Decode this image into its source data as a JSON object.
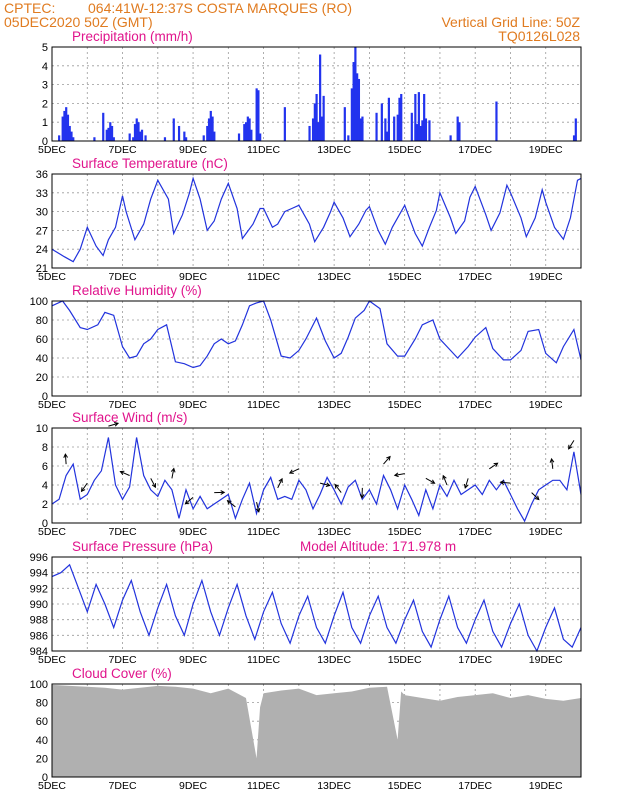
{
  "header": {
    "line1_left": "CPTEC:",
    "line1_center": "064:41W-12:37S   COSTA MARQUES (RO)",
    "line2_left": "05DEC2020 50Z (GMT)",
    "line2_right": "Vertical Grid Line: 50Z",
    "line3_right": "TQ0126L028"
  },
  "colors": {
    "header": "#e07b20",
    "panel_title": "#e0148c",
    "line": "#2233dd",
    "bar": "#2233ee",
    "cloud": "#b0b0b0",
    "arrow": "#000000"
  },
  "x_ticks": [
    "5DEC",
    "7DEC",
    "9DEC",
    "11DEC",
    "13DEC",
    "15DEC",
    "17DEC",
    "19DEC"
  ],
  "chart_data": [
    {
      "type": "bar",
      "title": "Precipitation (mm/h)",
      "ylim": [
        0,
        5
      ],
      "yticks": [
        "0",
        "1",
        "2",
        "3",
        "4",
        "5"
      ],
      "x": [
        "5.2",
        "5.3",
        "5.35",
        "5.4",
        "5.45",
        "5.5",
        "5.55",
        "5.6",
        "6.2",
        "6.45",
        "6.55",
        "6.6",
        "6.65",
        "6.7",
        "6.75",
        "7.2",
        "7.3",
        "7.35",
        "7.4",
        "7.45",
        "7.5",
        "7.55",
        "7.65",
        "8.2",
        "8.45",
        "8.6",
        "8.75",
        "8.8",
        "9.3",
        "9.4",
        "9.45",
        "9.5",
        "9.55",
        "9.6",
        "10.3",
        "10.45",
        "10.5",
        "10.55",
        "10.6",
        "10.65",
        "10.8",
        "10.85",
        "10.9",
        "11.6",
        "12.3",
        "12.4",
        "12.45",
        "12.5",
        "12.55",
        "12.6",
        "12.65",
        "12.7",
        "13.3",
        "13.4",
        "13.5",
        "13.55",
        "13.6",
        "13.65",
        "13.7",
        "13.75",
        "13.8",
        "14.2",
        "14.35",
        "14.45",
        "14.5",
        "14.55",
        "14.7",
        "14.8",
        "14.85",
        "14.9",
        "15.2",
        "15.3",
        "15.35",
        "15.4",
        "15.45",
        "15.5",
        "15.55",
        "15.6",
        "15.7",
        "16.3",
        "16.5",
        "16.55",
        "17.6",
        "19.8",
        "19.85"
      ],
      "values": [
        0.3,
        1.3,
        1.6,
        1.8,
        1.4,
        0.8,
        0.5,
        0.2,
        0.2,
        1.5,
        0.6,
        0.7,
        1.0,
        0.8,
        0.2,
        0.4,
        0.2,
        0.9,
        1.2,
        1.0,
        0.5,
        0.6,
        0.3,
        0.2,
        1.2,
        0.8,
        0.5,
        0.2,
        0.3,
        0.8,
        1.2,
        1.6,
        1.3,
        0.5,
        0.4,
        0.9,
        1.0,
        1.3,
        1.2,
        0.6,
        2.8,
        2.7,
        0.4,
        1.8,
        0.8,
        1.2,
        2.0,
        2.5,
        1.0,
        4.6,
        1.3,
        2.4,
        1.8,
        0.3,
        2.8,
        4.2,
        5.0,
        3.6,
        3.3,
        1.2,
        1.3,
        1.5,
        2.0,
        1.2,
        0.5,
        2.3,
        1.3,
        1.4,
        2.3,
        2.5,
        1.5,
        2.5,
        0.9,
        2.6,
        0.8,
        1.1,
        2.5,
        1.2,
        1.1,
        0.3,
        1.3,
        1.0,
        2.1,
        0.3,
        1.2
      ]
    },
    {
      "type": "line",
      "title": "Surface Temperature (nC)",
      "ylim": [
        21,
        36
      ],
      "yticks": [
        "21",
        "24",
        "27",
        "30",
        "33",
        "36"
      ],
      "x": [
        "5.0",
        "5.35",
        "5.6",
        "5.8",
        "6.0",
        "6.25",
        "6.45",
        "6.6",
        "6.8",
        "7.0",
        "7.1",
        "7.35",
        "7.6",
        "7.8",
        "8.0",
        "8.3",
        "8.45",
        "8.7",
        "8.9",
        "9.0",
        "9.2",
        "9.4",
        "9.6",
        "9.8",
        "10.0",
        "10.25",
        "10.4",
        "10.7",
        "10.9",
        "11.0",
        "11.25",
        "11.4",
        "11.6",
        "11.8",
        "12.0",
        "12.3",
        "12.45",
        "12.7",
        "12.9",
        "13.0",
        "13.25",
        "13.45",
        "13.7",
        "13.9",
        "14.0",
        "14.25",
        "14.45",
        "14.65",
        "14.85",
        "15.0",
        "15.3",
        "15.5",
        "15.7",
        "15.9",
        "16.0",
        "16.3",
        "16.45",
        "16.7",
        "16.85",
        "17.0",
        "17.3",
        "17.45",
        "17.7",
        "17.9",
        "18.0",
        "18.3",
        "18.45",
        "18.7",
        "18.9",
        "19.0",
        "19.25",
        "19.5",
        "19.7",
        "19.9",
        "20.0"
      ],
      "values": [
        24,
        22.8,
        22,
        24,
        27.5,
        24.5,
        23,
        25.5,
        27.5,
        32.5,
        30,
        25.5,
        28,
        32,
        35,
        32,
        26.5,
        29.5,
        33,
        35.3,
        32,
        27,
        28.5,
        32,
        34.5,
        30.5,
        25.7,
        28,
        30.5,
        30.5,
        27.5,
        28,
        30,
        30.5,
        31,
        28,
        25.2,
        27.5,
        30,
        31.5,
        29,
        26,
        28,
        30.2,
        30.8,
        27,
        24.8,
        27.5,
        29.5,
        31,
        26.5,
        24.5,
        27.5,
        30.2,
        33,
        29,
        26.5,
        28.5,
        32.3,
        34,
        29.5,
        27,
        29.8,
        34.2,
        33,
        29,
        26,
        29,
        33.5,
        31.5,
        27.5,
        25.6,
        29,
        35,
        35.3
      ]
    },
    {
      "type": "line",
      "title": "Relative Humidity (%)",
      "ylim": [
        0,
        100
      ],
      "yticks": [
        "0",
        "20",
        "40",
        "60",
        "80",
        "100"
      ],
      "x": [
        "5.0",
        "5.3",
        "5.5",
        "5.8",
        "6.0",
        "6.3",
        "6.5",
        "6.75",
        "7.0",
        "7.2",
        "7.4",
        "7.6",
        "7.8",
        "8.0",
        "8.25",
        "8.5",
        "8.75",
        "9.0",
        "9.2",
        "9.4",
        "9.6",
        "9.8",
        "10.0",
        "10.2",
        "10.4",
        "10.6",
        "10.8",
        "11.0",
        "11.2",
        "11.5",
        "11.75",
        "12.0",
        "12.2",
        "12.5",
        "12.75",
        "13.0",
        "13.2",
        "13.4",
        "13.6",
        "13.85",
        "14.0",
        "14.3",
        "14.5",
        "14.8",
        "15.0",
        "15.3",
        "15.5",
        "15.8",
        "16.0",
        "16.3",
        "16.5",
        "16.8",
        "17.0",
        "17.3",
        "17.5",
        "17.8",
        "18.0",
        "18.3",
        "18.5",
        "18.8",
        "19.0",
        "19.3",
        "19.5",
        "19.8",
        "20.0"
      ],
      "values": [
        95,
        100,
        90,
        72,
        70,
        75,
        88,
        85,
        52,
        40,
        42,
        55,
        60,
        70,
        75,
        36,
        34,
        30,
        32,
        42,
        55,
        60,
        55,
        58,
        75,
        95,
        98,
        100,
        80,
        42,
        40,
        48,
        60,
        82,
        58,
        40,
        45,
        62,
        82,
        90,
        100,
        92,
        55,
        42,
        42,
        60,
        75,
        80,
        60,
        48,
        40,
        52,
        62,
        72,
        50,
        38,
        38,
        48,
        68,
        70,
        45,
        35,
        52,
        70,
        38
      ]
    },
    {
      "type": "line",
      "title": "Surface Wind (m/s)",
      "ylim": [
        0,
        10
      ],
      "yticks": [
        "0",
        "2",
        "4",
        "6",
        "8",
        "10"
      ],
      "x": [
        "5.0",
        "5.2",
        "5.4",
        "5.6",
        "5.8",
        "6.0",
        "6.2",
        "6.4",
        "6.6",
        "6.8",
        "7.0",
        "7.2",
        "7.4",
        "7.6",
        "7.8",
        "8.0",
        "8.2",
        "8.4",
        "8.6",
        "8.8",
        "9.0",
        "9.2",
        "9.4",
        "9.6",
        "9.8",
        "10.0",
        "10.2",
        "10.4",
        "10.6",
        "10.8",
        "11.0",
        "11.2",
        "11.4",
        "11.6",
        "11.8",
        "12.0",
        "12.2",
        "12.4",
        "12.6",
        "12.8",
        "13.0",
        "13.2",
        "13.4",
        "13.6",
        "13.8",
        "14.0",
        "14.2",
        "14.4",
        "14.6",
        "14.8",
        "15.0",
        "15.2",
        "15.4",
        "15.6",
        "15.8",
        "16.0",
        "16.2",
        "16.4",
        "16.6",
        "16.8",
        "17.0",
        "17.2",
        "17.4",
        "17.6",
        "17.8",
        "18.0",
        "18.2",
        "18.4",
        "18.6",
        "18.8",
        "19.0",
        "19.2",
        "19.4",
        "19.6",
        "19.8",
        "20.0"
      ],
      "values": [
        2,
        2.5,
        5,
        6.2,
        2.5,
        3,
        4.5,
        5.5,
        9,
        4,
        2.5,
        3.8,
        9,
        5,
        3.5,
        2.8,
        4.5,
        3.5,
        0.5,
        3.5,
        1.5,
        2.8,
        1.5,
        2,
        2.5,
        3,
        0.5,
        2.5,
        4.2,
        1,
        3.5,
        4.8,
        2.5,
        2.8,
        2.5,
        4.5,
        3.5,
        1.5,
        3,
        4.8,
        3.5,
        2,
        3.8,
        4.5,
        2.5,
        3.5,
        2,
        5,
        3.5,
        1.5,
        4,
        2.5,
        0.8,
        3.5,
        1.5,
        4,
        2.8,
        4.5,
        3,
        3.5,
        4,
        3,
        4.5,
        3.5,
        4.5,
        3,
        1.5,
        0.2,
        2,
        3.5,
        4,
        4.5,
        4.5,
        3.5,
        7.5,
        3
      ]
    },
    {
      "type": "line",
      "title": "Surface Pressure (hPa)",
      "annotation": "Model Altitude: 171.978 m",
      "ylim": [
        984,
        996
      ],
      "yticks": [
        "984",
        "986",
        "988",
        "990",
        "992",
        "994",
        "996"
      ],
      "x": [
        "5.0",
        "5.25",
        "5.5",
        "5.75",
        "6.0",
        "6.25",
        "6.5",
        "6.75",
        "7.0",
        "7.25",
        "7.5",
        "7.75",
        "8.0",
        "8.25",
        "8.5",
        "8.75",
        "9.0",
        "9.25",
        "9.5",
        "9.75",
        "10.0",
        "10.25",
        "10.5",
        "10.75",
        "11.0",
        "11.25",
        "11.5",
        "11.75",
        "12.0",
        "12.25",
        "12.5",
        "12.75",
        "13.0",
        "13.25",
        "13.5",
        "13.75",
        "14.0",
        "14.25",
        "14.5",
        "14.75",
        "15.0",
        "15.25",
        "15.5",
        "15.75",
        "16.0",
        "16.25",
        "16.5",
        "16.75",
        "17.0",
        "17.25",
        "17.5",
        "17.75",
        "18.0",
        "18.25",
        "18.5",
        "18.75",
        "19.0",
        "19.25",
        "19.5",
        "19.75",
        "20.0"
      ],
      "values": [
        993.5,
        994,
        995,
        992,
        989,
        992.5,
        990,
        987,
        990.5,
        993,
        989,
        986,
        989.5,
        992.5,
        988.5,
        986,
        990,
        993,
        989,
        986,
        989.5,
        992.5,
        988.5,
        985.5,
        989,
        991.5,
        987.5,
        985,
        988.5,
        991,
        987,
        985,
        988.5,
        991.5,
        987,
        985,
        988.5,
        991,
        987,
        985,
        988,
        990.5,
        986.5,
        984.5,
        988,
        991,
        987,
        985,
        988,
        990.5,
        986.5,
        984.5,
        987.5,
        990,
        986,
        984,
        987,
        989.5,
        985.5,
        984.5,
        987
      ]
    },
    {
      "type": "area",
      "title": "Cloud Cover (%)",
      "ylim": [
        0,
        100
      ],
      "yticks": [
        "0",
        "20",
        "40",
        "60",
        "80",
        "100"
      ],
      "x": [
        "5.0",
        "5.5",
        "6.0",
        "6.5",
        "7.0",
        "7.5",
        "8.0",
        "8.5",
        "9.0",
        "9.5",
        "10.0",
        "10.5",
        "10.8",
        "10.9",
        "11.0",
        "11.5",
        "12.0",
        "12.5",
        "13.0",
        "13.5",
        "14.0",
        "14.5",
        "14.8",
        "14.9",
        "15.0",
        "15.5",
        "16.0",
        "16.5",
        "17.0",
        "17.5",
        "18.0",
        "18.5",
        "19.0",
        "19.5",
        "20.0"
      ],
      "values": [
        99,
        98,
        97,
        96,
        94,
        96,
        98,
        97,
        95,
        90,
        95,
        85,
        20,
        75,
        90,
        93,
        95,
        88,
        90,
        92,
        96,
        97,
        40,
        92,
        88,
        85,
        82,
        86,
        88,
        90,
        85,
        88,
        84,
        82,
        85
      ]
    }
  ]
}
